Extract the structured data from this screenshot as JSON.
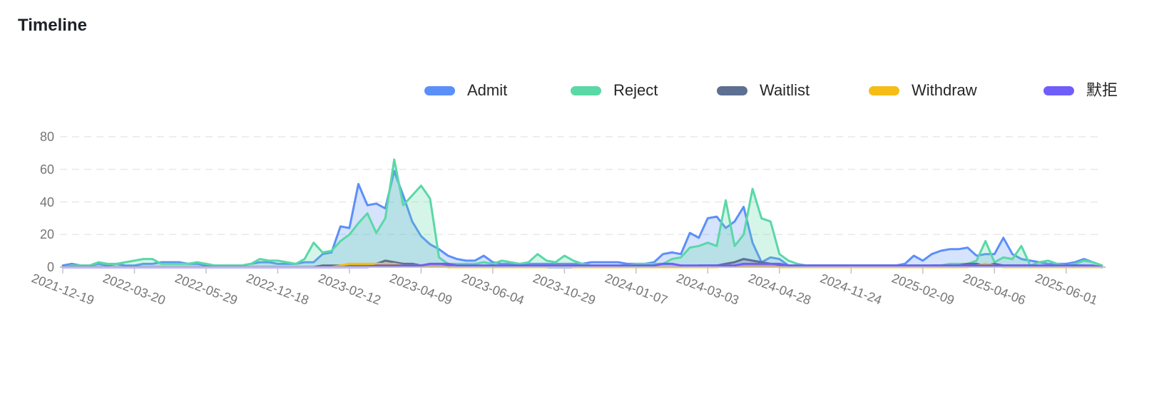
{
  "page": {
    "title": "Timeline"
  },
  "chart_data": {
    "type": "area",
    "title": "Timeline",
    "xlabel": "",
    "ylabel": "",
    "ylim": [
      0,
      80
    ],
    "y_ticks": [
      0,
      20,
      40,
      60,
      80
    ],
    "grid": "dashed-horizontal",
    "legend_position": "top-right",
    "x_tick_labels": [
      "2021-12-19",
      "2022-03-20",
      "2022-05-29",
      "2022-12-18",
      "2023-02-12",
      "2023-04-09",
      "2023-06-04",
      "2023-10-29",
      "2024-01-07",
      "2024-03-03",
      "2024-04-28",
      "2024-11-24",
      "2025-02-09",
      "2025-04-06",
      "2025-06-01"
    ],
    "x_tick_every_n_points": 8,
    "series": [
      {
        "id": "admit",
        "name": "Admit",
        "color": "#5B8FF9",
        "values": [
          1,
          2,
          1,
          1,
          2,
          1,
          2,
          1,
          1,
          2,
          2,
          3,
          3,
          3,
          2,
          2,
          1,
          1,
          1,
          1,
          1,
          2,
          3,
          3,
          2,
          2,
          2,
          3,
          3,
          8,
          9,
          25,
          24,
          51,
          38,
          39,
          36,
          59,
          44,
          28,
          19,
          14,
          11,
          7,
          5,
          4,
          4,
          7,
          3,
          2,
          2,
          2,
          2,
          2,
          2,
          2,
          2,
          2,
          2,
          3,
          3,
          3,
          3,
          2,
          2,
          2,
          3,
          8,
          9,
          8,
          21,
          18,
          30,
          31,
          24,
          28,
          37,
          15,
          3,
          6,
          5,
          1,
          1,
          1,
          1,
          1,
          1,
          1,
          1,
          1,
          1,
          1,
          1,
          1,
          2,
          7,
          4,
          8,
          10,
          11,
          11,
          12,
          7,
          8,
          8,
          18,
          8,
          5,
          4,
          3,
          2,
          2,
          2,
          3,
          5,
          3,
          1
        ]
      },
      {
        "id": "reject",
        "name": "Reject",
        "color": "#5AD8A6",
        "values": [
          0,
          1,
          1,
          1,
          3,
          2,
          2,
          3,
          4,
          5,
          5,
          2,
          2,
          2,
          2,
          3,
          2,
          1,
          1,
          1,
          1,
          2,
          5,
          4,
          4,
          3,
          2,
          5,
          15,
          9,
          10,
          16,
          20,
          27,
          33,
          21,
          30,
          66,
          38,
          44,
          50,
          42,
          6,
          2,
          2,
          2,
          2,
          3,
          2,
          4,
          3,
          2,
          3,
          8,
          4,
          3,
          7,
          4,
          2,
          1,
          1,
          1,
          1,
          1,
          2,
          2,
          2,
          2,
          5,
          6,
          12,
          13,
          15,
          13,
          41,
          13,
          20,
          48,
          30,
          28,
          8,
          4,
          2,
          1,
          1,
          1,
          1,
          1,
          1,
          1,
          1,
          1,
          1,
          1,
          1,
          1,
          1,
          1,
          1,
          2,
          2,
          2,
          4,
          16,
          3,
          6,
          5,
          13,
          1,
          3,
          4,
          2,
          1,
          2,
          4,
          3,
          1
        ]
      },
      {
        "id": "waitlist",
        "name": "Waitlist",
        "color": "#5D7092",
        "values": [
          0,
          0,
          0,
          0,
          0,
          0,
          0,
          0,
          0,
          0,
          0,
          0,
          0,
          0,
          0,
          0,
          0,
          0,
          0,
          0,
          0,
          0,
          0,
          0,
          0,
          0,
          0,
          0,
          0,
          1,
          1,
          1,
          1,
          1,
          1,
          2,
          4,
          3,
          2,
          2,
          1,
          1,
          1,
          1,
          0,
          0,
          0,
          0,
          0,
          0,
          0,
          0,
          0,
          0,
          0,
          0,
          0,
          0,
          0,
          0,
          0,
          0,
          0,
          0,
          0,
          0,
          0,
          0,
          0,
          0,
          0,
          1,
          1,
          1,
          2,
          3,
          5,
          4,
          3,
          2,
          1,
          1,
          0,
          0,
          0,
          0,
          0,
          0,
          0,
          0,
          0,
          0,
          0,
          0,
          0,
          0,
          0,
          1,
          1,
          1,
          1,
          2,
          2,
          1,
          2,
          1,
          1,
          1,
          1,
          0,
          0,
          0,
          1,
          1,
          1,
          0,
          0
        ]
      },
      {
        "id": "withdraw",
        "name": "Withdraw",
        "color": "#F6BD16",
        "values": [
          0,
          0,
          0,
          0,
          0,
          0,
          0,
          0,
          0,
          0,
          0,
          0,
          0,
          0,
          0,
          0,
          0,
          0,
          0,
          0,
          0,
          0,
          0,
          0,
          0,
          0,
          0,
          0,
          0,
          0,
          0,
          1,
          2,
          2,
          2,
          2,
          2,
          2,
          1,
          1,
          1,
          1,
          1,
          0,
          0,
          0,
          0,
          0,
          0,
          0,
          0,
          0,
          0,
          0,
          0,
          1,
          1,
          0,
          0,
          0,
          0,
          0,
          0,
          0,
          0,
          0,
          0,
          0,
          0,
          0,
          0,
          0,
          0,
          0,
          1,
          1,
          1,
          1,
          1,
          1,
          0,
          0,
          0,
          0,
          0,
          0,
          0,
          0,
          0,
          0,
          0,
          0,
          0,
          0,
          0,
          0,
          0,
          0,
          0,
          0,
          0,
          0,
          1,
          2,
          1,
          0,
          0,
          0,
          0,
          0,
          0,
          0,
          0,
          0,
          0,
          0,
          0
        ]
      },
      {
        "id": "silent-reject",
        "name": "默拒",
        "color": "#6F5EF9",
        "values": [
          0,
          0,
          0,
          0,
          0,
          0,
          0,
          0,
          0,
          0,
          0,
          0,
          0,
          0,
          0,
          0,
          0,
          0,
          0,
          0,
          0,
          0,
          0,
          0,
          0,
          0,
          0,
          0,
          0,
          0,
          0,
          0,
          0,
          0,
          0,
          1,
          1,
          1,
          1,
          1,
          1,
          2,
          2,
          2,
          1,
          1,
          1,
          1,
          1,
          1,
          1,
          1,
          1,
          1,
          1,
          1,
          1,
          1,
          1,
          1,
          1,
          1,
          1,
          1,
          1,
          1,
          1,
          2,
          2,
          1,
          1,
          1,
          1,
          1,
          1,
          1,
          2,
          2,
          2,
          2,
          2,
          1,
          1,
          1,
          1,
          1,
          1,
          1,
          1,
          1,
          1,
          1,
          1,
          1,
          1,
          1,
          1,
          1,
          1,
          1,
          1,
          1,
          1,
          1,
          1,
          1,
          1,
          1,
          1,
          1,
          1,
          1,
          1,
          1,
          1,
          1,
          0
        ]
      }
    ],
    "colors": {
      "grid_line": "#e8e8e8",
      "axis_line": "#c2c2c2",
      "axis_label": "#757575",
      "title_text": "#1d2129",
      "legend_text": "#262626"
    }
  }
}
